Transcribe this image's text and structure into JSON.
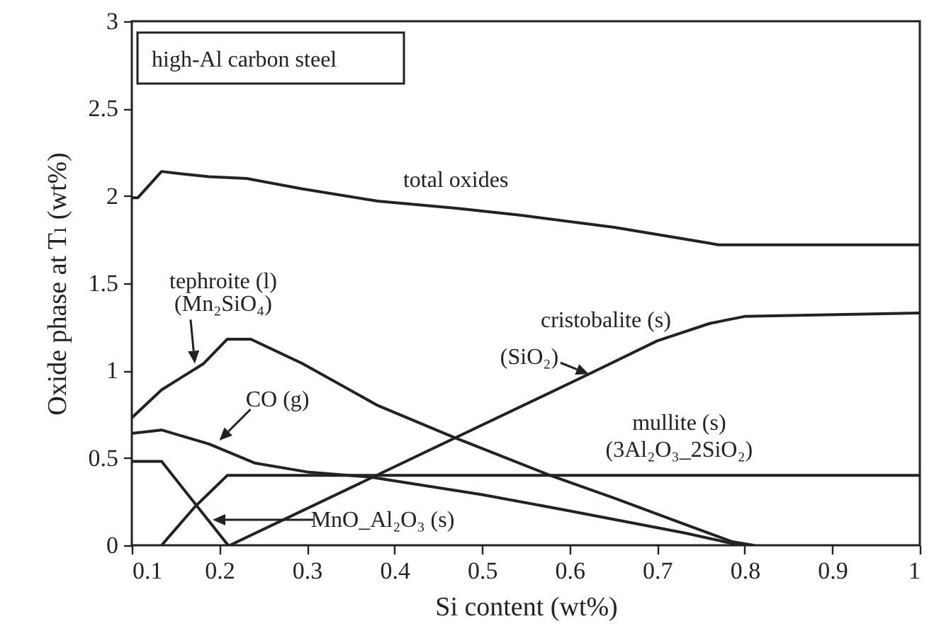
{
  "chart_data": {
    "type": "line",
    "xlabel": "Si content (wt%)",
    "ylabel": "Oxide phase at Tₗ (wt%)",
    "xlim": [
      0.1,
      1
    ],
    "xticks": [
      0.1,
      0.2,
      0.3,
      0.4,
      0.5,
      0.6,
      0.7,
      0.8,
      0.9,
      1
    ],
    "ylim": [
      0,
      3
    ],
    "yticks": [
      0,
      0.5,
      1,
      1.5,
      2,
      2.5,
      3
    ],
    "grid": false,
    "marker": "none",
    "line_style": "solid",
    "series": [
      {
        "color": "#222222",
        "x": [
          0.1,
          0.107,
          0.134,
          0.15,
          0.188,
          0.231,
          0.295,
          0.381,
          0.47,
          0.543,
          0.651,
          0.759,
          0.77,
          1
        ],
        "values": [
          1.99,
          1.99,
          2.14,
          2.13,
          2.11,
          2.1,
          2.04,
          1.97,
          1.93,
          1.89,
          1.82,
          1.73,
          1.72,
          1.72
        ]
      },
      {
        "color": "#222222",
        "x": [
          0.1,
          0.134,
          0.182,
          0.209,
          0.236,
          0.295,
          0.381,
          0.467,
          0.578,
          0.651,
          0.737,
          0.786,
          0.81
        ],
        "values": [
          0.73,
          0.89,
          1.04,
          1.18,
          1.18,
          1.04,
          0.8,
          0.62,
          0.4,
          0.27,
          0.11,
          0.02,
          0
        ]
      },
      {
        "color": "#222222",
        "x": [
          0.1,
          0.134,
          0.188,
          0.241,
          0.3,
          0.373,
          0.5,
          0.597,
          0.732,
          0.786,
          0.8
        ],
        "values": [
          0.64,
          0.66,
          0.58,
          0.47,
          0.42,
          0.39,
          0.29,
          0.2,
          0.07,
          0.01,
          0
        ]
      },
      {
        "color": "#222222",
        "x": [
          0.1,
          0.134,
          0.21
        ],
        "values": [
          0.48,
          0.48,
          0
        ]
      },
      {
        "color": "#222222",
        "x": [
          0.134,
          0.172,
          0.209,
          1
        ],
        "values": [
          0,
          0.22,
          0.4,
          0.4
        ]
      },
      {
        "color": "#222222",
        "x": [
          0.212,
          0.622,
          0.7,
          0.76,
          0.8,
          1
        ],
        "values": [
          0,
          0.98,
          1.17,
          1.27,
          1.31,
          1.33
        ]
      }
    ],
    "annotations": [
      "high-Al carbon steel",
      {
        "text": "total oxides",
        "x": 0.47,
        "y": 1.93
      },
      {
        "text": "tephroite (l)\n(Mn₂SiO₄)",
        "x": 0.172,
        "y": 1.04
      },
      {
        "text": "CO (g)",
        "x": 0.2,
        "y": 0.6
      },
      "MnO_Al₂O₃ (s)",
      {
        "text": "cristobalite (s)\n(SiO₂)",
        "x": 0.622,
        "y": 0.98
      },
      {
        "text": "mullite (s)\n(3Al₂O₃_2SiO₂)",
        "x": 0.73,
        "y": 0.4
      }
    ]
  }
}
